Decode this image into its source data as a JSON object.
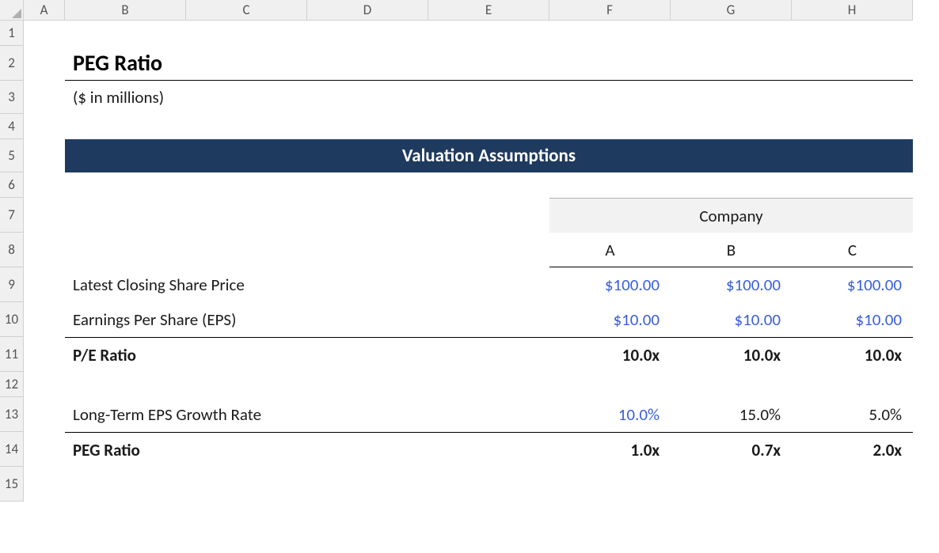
{
  "colHeaders": [
    "A",
    "B",
    "C",
    "D",
    "E",
    "F",
    "G",
    "H"
  ],
  "rowHeaders": [
    "1",
    "2",
    "3",
    "4",
    "5",
    "6",
    "7",
    "8",
    "9",
    "10",
    "11",
    "12",
    "13",
    "14",
    "15"
  ],
  "title": "PEG Ratio",
  "subtitle": "($ in millions)",
  "bannerTitle": "Valuation Assumptions",
  "companyHeader": "Company",
  "companies": [
    "A",
    "B",
    "C"
  ],
  "rows": {
    "closingPrice": {
      "label": "Latest Closing Share Price",
      "values": [
        "$100.00",
        "$100.00",
        "$100.00"
      ]
    },
    "eps": {
      "label": "Earnings Per Share (EPS)",
      "values": [
        "$10.00",
        "$10.00",
        "$10.00"
      ]
    },
    "peRatio": {
      "label": "P/E Ratio",
      "values": [
        "10.0x",
        "10.0x",
        "10.0x"
      ]
    },
    "growthRate": {
      "label": "Long-Term EPS Growth Rate",
      "values": [
        "10.0%",
        "15.0%",
        "5.0%"
      ]
    },
    "pegRatio": {
      "label": "PEG Ratio",
      "values": [
        "1.0x",
        "0.7x",
        "2.0x"
      ]
    }
  },
  "colors": {
    "inputBlue": "#3b5fd9",
    "bannerBg": "#1f3a5f",
    "headerGray": "#f2f2f2",
    "black": "#1a1a1a"
  }
}
